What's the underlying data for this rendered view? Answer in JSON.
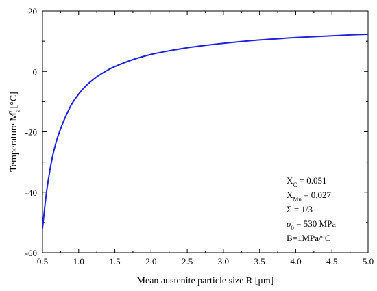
{
  "chart_data": {
    "type": "line",
    "title": "",
    "xlabel": "Mean austenite particle size R [μm]",
    "ylabel": {
      "main": "Temperature M",
      "sub": "s",
      "sup": "σ",
      "unit": " [°C]"
    },
    "xlim": [
      0.5,
      5.0
    ],
    "ylim": [
      -60,
      20
    ],
    "xticks": [
      0.5,
      1.0,
      1.5,
      2.0,
      2.5,
      3.0,
      3.5,
      4.0,
      4.5,
      5.0
    ],
    "xtick_labels": [
      "0.5",
      "1.0",
      "1.5",
      "2.0",
      "2.5",
      "3.0",
      "3.5",
      "4.0",
      "4.5",
      "5.0"
    ],
    "yticks": [
      -60,
      -40,
      -20,
      0,
      20
    ],
    "ytick_labels": [
      "-60",
      "-40",
      "-20",
      "0",
      "20"
    ],
    "grid": false,
    "series": [
      {
        "color": "#1f1fe0",
        "x": [
          0.5,
          0.55,
          0.6,
          0.65,
          0.7,
          0.75,
          0.8,
          0.9,
          1.0,
          1.1,
          1.2,
          1.3,
          1.4,
          1.5,
          1.75,
          2.0,
          2.25,
          2.5,
          2.75,
          3.0,
          3.25,
          3.5,
          3.75,
          4.0,
          4.25,
          4.5,
          4.75,
          5.0
        ],
        "y": [
          -52,
          -41,
          -33,
          -27,
          -22.5,
          -19,
          -16,
          -11,
          -7.5,
          -4.8,
          -2.7,
          -1.0,
          0.4,
          1.6,
          3.9,
          5.6,
          6.8,
          7.8,
          8.6,
          9.3,
          9.9,
          10.4,
          10.8,
          11.2,
          11.5,
          11.8,
          12.1,
          12.3
        ]
      }
    ],
    "annotations": [
      {
        "label": "X",
        "sub": "C",
        "rest": " = 0.051"
      },
      {
        "label": "X",
        "sub": "Mn",
        "rest": " = 0.027"
      },
      {
        "label": "Σ = 1/3",
        "sub": "",
        "rest": ""
      },
      {
        "label": "σ",
        "sub": "0",
        "rest": " = 530 MPa"
      },
      {
        "label": "B=1MPa/°C",
        "sub": "",
        "rest": ""
      }
    ]
  }
}
